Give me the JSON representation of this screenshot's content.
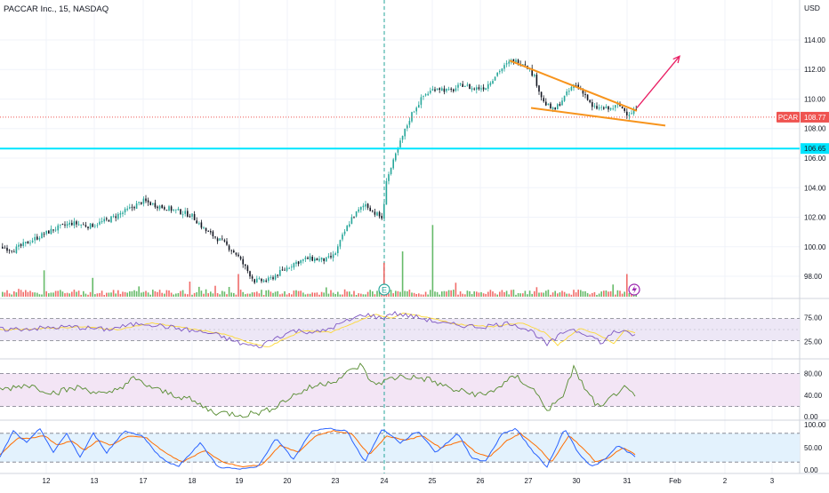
{
  "header": {
    "title": "PACCAR Inc., 15, NASDAQ",
    "currency": "USD"
  },
  "badges": {
    "symbol": "PCAR",
    "last_price": "108.77",
    "level_price": "106.65"
  },
  "colors": {
    "up": "#26a69a",
    "down": "#ef5350",
    "vol_up": "#4caf50",
    "vol_down": "#ef5350",
    "wedge": "#f7941d",
    "arrow": "#e91e63",
    "hline": "#00e5ff",
    "rsi_line": "#7e57c2",
    "rsi_ma": "#fdd835",
    "rsi_band": "#ede7f6",
    "osc2_line": "#558b2f",
    "osc2_band": "#f3e5f5",
    "stoch_k": "#2962ff",
    "stoch_d": "#ff6d00",
    "stoch_band": "#e3f2fd",
    "session_line": "#26a69a"
  },
  "markers": {
    "earnings_icon": "earnings-icon",
    "dividend_icon": "dividend-icon"
  },
  "chart_data": {
    "type": "candlestick",
    "symbol": "PCAR",
    "timeframe": "15",
    "x_tick_labels": [
      "12",
      "13",
      "17",
      "18",
      "19",
      "20",
      "23",
      "24",
      "25",
      "26",
      "27",
      "30",
      "31",
      "Feb",
      "2",
      "3"
    ],
    "price_axis": {
      "ylim": [
        96.5,
        115.5
      ],
      "tick_labels": [
        "98.00",
        "100.00",
        "102.00",
        "104.00",
        "106.00",
        "108.00",
        "110.00",
        "112.00",
        "114.00"
      ]
    },
    "last_price": 108.77,
    "horizontal_level": 106.65,
    "price_path": [
      [
        0,
        100.0
      ],
      [
        15,
        99.8
      ],
      [
        40,
        100.6
      ],
      [
        60,
        101.2
      ],
      [
        80,
        101.6
      ],
      [
        100,
        101.4
      ],
      [
        120,
        101.8
      ],
      [
        140,
        102.4
      ],
      [
        160,
        103.1
      ],
      [
        175,
        102.8
      ],
      [
        200,
        102.4
      ],
      [
        215,
        102.1
      ],
      [
        230,
        101.1
      ],
      [
        250,
        100.3
      ],
      [
        265,
        99.5
      ],
      [
        275,
        98.6
      ],
      [
        285,
        97.7
      ],
      [
        300,
        97.7
      ],
      [
        315,
        98.3
      ],
      [
        330,
        98.9
      ],
      [
        345,
        99.2
      ],
      [
        365,
        99.1
      ],
      [
        375,
        99.4
      ],
      [
        385,
        100.8
      ],
      [
        395,
        102.0
      ],
      [
        410,
        102.9
      ],
      [
        420,
        102.3
      ],
      [
        430,
        101.9
      ],
      [
        433,
        104.5
      ],
      [
        440,
        105.5
      ],
      [
        450,
        107.2
      ],
      [
        462,
        109.0
      ],
      [
        475,
        110.2
      ],
      [
        490,
        110.8
      ],
      [
        505,
        110.5
      ],
      [
        520,
        111.0
      ],
      [
        530,
        110.7
      ],
      [
        545,
        110.8
      ],
      [
        560,
        111.9
      ],
      [
        575,
        112.6
      ],
      [
        590,
        112.4
      ],
      [
        600,
        111.5
      ],
      [
        610,
        109.8
      ],
      [
        622,
        109.2
      ],
      [
        632,
        110.0
      ],
      [
        645,
        111.0
      ],
      [
        655,
        110.5
      ],
      [
        665,
        109.4
      ],
      [
        675,
        109.4
      ],
      [
        685,
        109.3
      ],
      [
        695,
        109.6
      ],
      [
        705,
        109.0
      ],
      [
        715,
        109.3
      ]
    ],
    "volume_spikes": [
      {
        "x": 48,
        "v": 0.35,
        "up": true
      },
      {
        "x": 104,
        "v": 0.25,
        "up": true
      },
      {
        "x": 212,
        "v": 0.2,
        "up": false
      },
      {
        "x": 267,
        "v": 0.3,
        "up": false
      },
      {
        "x": 431,
        "v": 0.45,
        "up": false
      },
      {
        "x": 452,
        "v": 0.6,
        "up": true
      },
      {
        "x": 486,
        "v": 0.95,
        "up": true
      },
      {
        "x": 703,
        "v": 0.3,
        "up": false
      }
    ],
    "drawings": {
      "wedge_upper": [
        [
          573,
          112.6
        ],
        [
          716,
          109.2
        ]
      ],
      "wedge_lower": [
        [
          597,
          109.4
        ],
        [
          748,
          108.2
        ]
      ],
      "arrow": [
        [
          716,
          109.4
        ],
        [
          764,
          112.9
        ]
      ]
    },
    "rsi": {
      "band": [
        30,
        70
      ],
      "tick_labels": [
        "75.00",
        "25.00"
      ],
      "series": [
        [
          0,
          50
        ],
        [
          40,
          52
        ],
        [
          80,
          55
        ],
        [
          120,
          50
        ],
        [
          160,
          62
        ],
        [
          200,
          52
        ],
        [
          240,
          42
        ],
        [
          270,
          25
        ],
        [
          290,
          18
        ],
        [
          310,
          35
        ],
        [
          330,
          48
        ],
        [
          360,
          45
        ],
        [
          390,
          65
        ],
        [
          410,
          78
        ],
        [
          430,
          70
        ],
        [
          440,
          80
        ],
        [
          470,
          72
        ],
        [
          500,
          60
        ],
        [
          540,
          55
        ],
        [
          575,
          62
        ],
        [
          600,
          45
        ],
        [
          615,
          22
        ],
        [
          640,
          52
        ],
        [
          660,
          42
        ],
        [
          678,
          25
        ],
        [
          690,
          48
        ],
        [
          715,
          40
        ]
      ]
    },
    "osc2": {
      "band": [
        20,
        80
      ],
      "tick_labels": [
        "80.00",
        "40.00",
        "0.00"
      ],
      "series": [
        [
          0,
          50
        ],
        [
          30,
          60
        ],
        [
          60,
          45
        ],
        [
          90,
          55
        ],
        [
          120,
          40
        ],
        [
          150,
          70
        ],
        [
          180,
          48
        ],
        [
          210,
          35
        ],
        [
          240,
          10
        ],
        [
          275,
          5
        ],
        [
          300,
          12
        ],
        [
          330,
          40
        ],
        [
          350,
          55
        ],
        [
          380,
          70
        ],
        [
          405,
          95
        ],
        [
          420,
          60
        ],
        [
          450,
          75
        ],
        [
          480,
          70
        ],
        [
          510,
          50
        ],
        [
          545,
          40
        ],
        [
          580,
          75
        ],
        [
          600,
          50
        ],
        [
          615,
          15
        ],
        [
          630,
          30
        ],
        [
          645,
          90
        ],
        [
          660,
          45
        ],
        [
          675,
          15
        ],
        [
          690,
          40
        ],
        [
          700,
          55
        ],
        [
          715,
          35
        ]
      ]
    },
    "stoch": {
      "band": [
        20,
        80
      ],
      "tick_labels": [
        "100.00",
        "50.00",
        "0.00"
      ],
      "k_series": [
        [
          0,
          30
        ],
        [
          15,
          85
        ],
        [
          30,
          60
        ],
        [
          45,
          90
        ],
        [
          60,
          40
        ],
        [
          75,
          80
        ],
        [
          90,
          30
        ],
        [
          105,
          80
        ],
        [
          120,
          40
        ],
        [
          140,
          85
        ],
        [
          160,
          75
        ],
        [
          180,
          30
        ],
        [
          200,
          10
        ],
        [
          225,
          60
        ],
        [
          245,
          10
        ],
        [
          270,
          5
        ],
        [
          290,
          10
        ],
        [
          310,
          70
        ],
        [
          330,
          25
        ],
        [
          350,
          85
        ],
        [
          370,
          90
        ],
        [
          390,
          85
        ],
        [
          410,
          20
        ],
        [
          430,
          90
        ],
        [
          450,
          60
        ],
        [
          470,
          85
        ],
        [
          490,
          40
        ],
        [
          515,
          80
        ],
        [
          530,
          30
        ],
        [
          545,
          20
        ],
        [
          565,
          80
        ],
        [
          580,
          90
        ],
        [
          600,
          40
        ],
        [
          615,
          10
        ],
        [
          635,
          90
        ],
        [
          650,
          40
        ],
        [
          665,
          10
        ],
        [
          680,
          25
        ],
        [
          695,
          55
        ],
        [
          715,
          30
        ]
      ],
      "d_series": [
        [
          0,
          35
        ],
        [
          20,
          70
        ],
        [
          35,
          70
        ],
        [
          50,
          75
        ],
        [
          65,
          55
        ],
        [
          80,
          65
        ],
        [
          95,
          45
        ],
        [
          110,
          65
        ],
        [
          125,
          55
        ],
        [
          145,
          75
        ],
        [
          165,
          70
        ],
        [
          185,
          40
        ],
        [
          205,
          20
        ],
        [
          230,
          45
        ],
        [
          250,
          20
        ],
        [
          275,
          10
        ],
        [
          295,
          15
        ],
        [
          315,
          55
        ],
        [
          335,
          40
        ],
        [
          355,
          75
        ],
        [
          375,
          85
        ],
        [
          395,
          80
        ],
        [
          415,
          35
        ],
        [
          435,
          75
        ],
        [
          455,
          65
        ],
        [
          475,
          75
        ],
        [
          495,
          50
        ],
        [
          520,
          65
        ],
        [
          535,
          40
        ],
        [
          550,
          30
        ],
        [
          570,
          65
        ],
        [
          585,
          80
        ],
        [
          605,
          50
        ],
        [
          620,
          20
        ],
        [
          640,
          75
        ],
        [
          655,
          50
        ],
        [
          670,
          20
        ],
        [
          685,
          30
        ],
        [
          700,
          50
        ],
        [
          715,
          35
        ]
      ]
    }
  }
}
